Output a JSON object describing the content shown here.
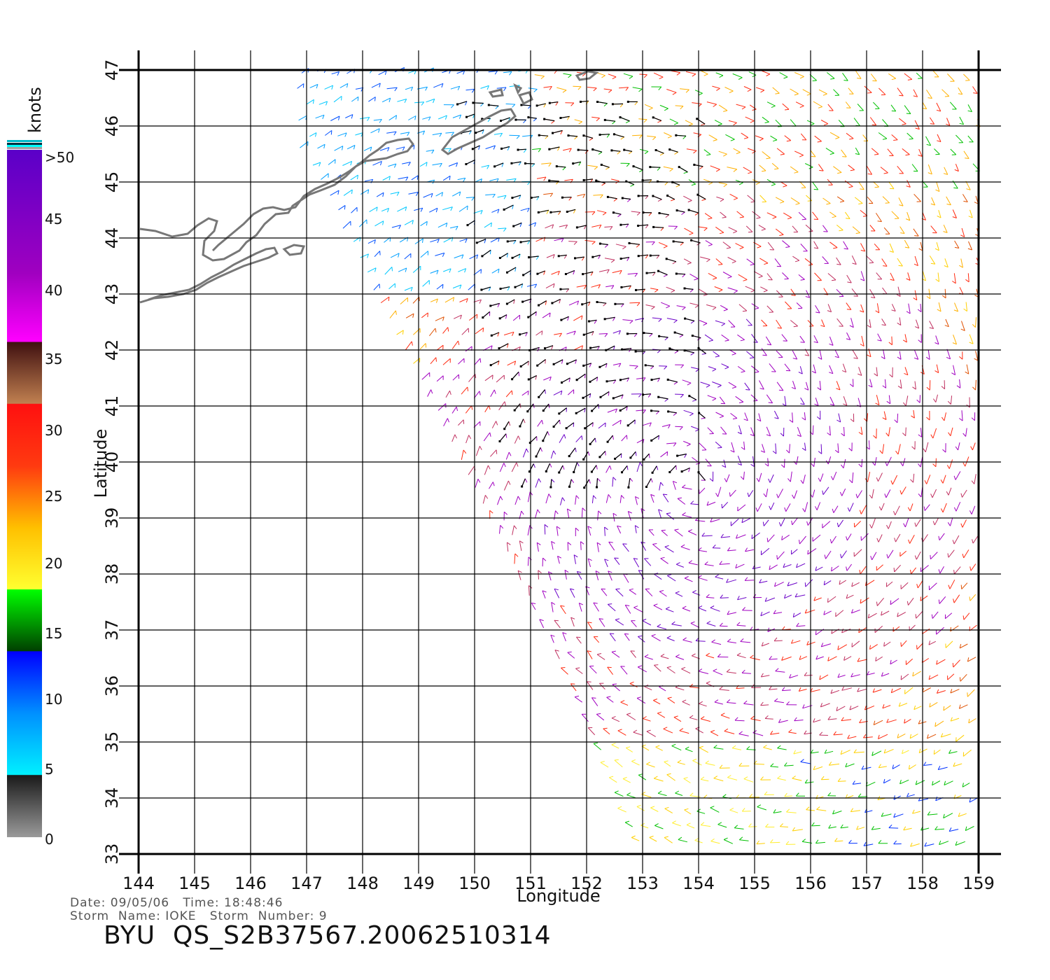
{
  "map": {
    "xlabel": "Longitude",
    "ylabel": "Latitude",
    "lon_range": [
      144,
      159
    ],
    "lat_range": [
      33,
      47
    ],
    "lon_ticks": [
      "144",
      "145",
      "146",
      "147",
      "148",
      "149",
      "150",
      "151",
      "152",
      "153",
      "154",
      "155",
      "156",
      "157",
      "158",
      "159"
    ],
    "lat_ticks": [
      "33",
      "34",
      "35",
      "36",
      "37",
      "38",
      "39",
      "40",
      "41",
      "42",
      "43",
      "44",
      "45",
      "46",
      "47"
    ],
    "grid": true
  },
  "colorbar": {
    "unit": "knots",
    "labels": [
      ">50",
      "45",
      "40",
      "35",
      "30",
      "25",
      "20",
      "15",
      "10",
      "5",
      "0"
    ],
    "colors": {
      "calm": "#7a7a7a",
      "5": "#00e8ff",
      "10": "#0000ff",
      "15": "#00ff00",
      "20": "#ffff33",
      "25": "#ffc800",
      "30": "#ff2a10",
      "35": "#c07a50",
      "40": "#ff00ff",
      "45": "#9a00c8",
      "50": "#5a00c8"
    }
  },
  "info": {
    "date_line": "Date: 09/05/06   Time: 18:48:46",
    "storm_line": "Storm  Name: IOKE   Storm  Number: 9",
    "product": "BYU  QS_S2B37567.20062510314"
  }
}
